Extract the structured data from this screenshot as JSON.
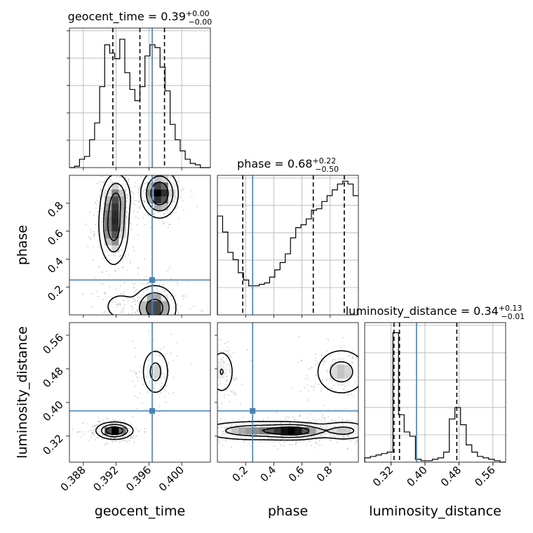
{
  "colors": {
    "truth": "#4682b4",
    "hist": "#000000",
    "grid": "#b0b0b0",
    "contour": "#000000",
    "density_max": "#000000",
    "density_min": "#ffffff",
    "sample_points": "#aaaaaa"
  },
  "chart_data": {
    "type": "corner",
    "parameters": [
      {
        "name": "geocent_time",
        "axis_label": "geocent_time",
        "title_text": "geocent_time = 0.39",
        "title_sup": "+0.00",
        "title_sub": "−0.00",
        "range": [
          0.3863,
          0.4035
        ],
        "ticks": [
          0.388,
          0.392,
          0.396,
          0.4
        ],
        "tick_labels": [
          "0.388",
          "0.392",
          "0.396",
          "0.400"
        ],
        "truth": 0.3964,
        "quantiles": [
          0.3916,
          0.3949,
          0.3979
        ]
      },
      {
        "name": "phase",
        "axis_label": "phase",
        "title_text": "phase = 0.68",
        "title_sup": "+0.22",
        "title_sub": "−0.50",
        "range": [
          0.0,
          1.0
        ],
        "ticks": [
          0.2,
          0.4,
          0.6,
          0.8
        ],
        "tick_labels": [
          "0.2",
          "0.4",
          "0.6",
          "0.8"
        ],
        "truth": 0.25,
        "quantiles": [
          0.18,
          0.68,
          0.9
        ]
      },
      {
        "name": "luminosity_distance",
        "axis_label": "luminosity_distance",
        "title_text": "luminosity_distance = 0.34",
        "title_sup": "+0.13",
        "title_sub": "−0.01",
        "range": [
          0.258,
          0.59
        ],
        "ticks": [
          0.32,
          0.4,
          0.48,
          0.56
        ],
        "tick_labels": [
          "0.32",
          "0.40",
          "0.48",
          "0.56"
        ],
        "truth": 0.38,
        "quantiles": [
          0.327,
          0.34,
          0.475
        ]
      }
    ],
    "histograms": [
      {
        "param": "geocent_time",
        "ymax": 1.0,
        "values": [
          0,
          0.01,
          0.06,
          0.08,
          0.2,
          0.32,
          0.58,
          0.88,
          0.82,
          0.78,
          0.92,
          0.68,
          0.56,
          0.48,
          0.58,
          0.8,
          0.88,
          0.86,
          0.72,
          0.55,
          0.31,
          0.2,
          0.12,
          0.06,
          0.03,
          0.02,
          0.0,
          0.0
        ]
      },
      {
        "param": "phase",
        "ymax": 0.96,
        "values": [
          0.68,
          0.57,
          0.43,
          0.38,
          0.29,
          0.24,
          0.2,
          0.2,
          0.21,
          0.22,
          0.26,
          0.31,
          0.36,
          0.42,
          0.53,
          0.6,
          0.62,
          0.66,
          0.72,
          0.73,
          0.78,
          0.82,
          0.86,
          0.9,
          0.92,
          0.9,
          0.82
        ]
      },
      {
        "param": "luminosity_distance",
        "ymax": 0.97,
        "values": [
          0.03,
          0.04,
          0.05,
          0.06,
          0.07,
          0.9,
          0.33,
          0.21,
          0.18,
          0.02,
          0.01,
          0.01,
          0.02,
          0.03,
          0.07,
          0.3,
          0.38,
          0.26,
          0.12,
          0.07,
          0.04,
          0.03,
          0.02,
          0.01,
          0.0
        ]
      }
    ],
    "density_2d": [
      {
        "x": "geocent_time",
        "y": "phase",
        "blobs": [
          {
            "cx": 0.3973,
            "cy": 0.87,
            "sx": 0.0011,
            "sy": 0.085,
            "w": 1.0
          },
          {
            "cx": 0.3917,
            "cy": 0.64,
            "sx": 0.0009,
            "sy": 0.14,
            "w": 0.85
          },
          {
            "cx": 0.3921,
            "cy": 0.85,
            "sx": 0.0009,
            "sy": 0.09,
            "w": 0.45
          },
          {
            "cx": 0.3967,
            "cy": 0.05,
            "sx": 0.0013,
            "sy": 0.08,
            "w": 0.85
          },
          {
            "cx": 0.3925,
            "cy": 0.06,
            "sx": 0.0012,
            "sy": 0.06,
            "w": 0.25
          }
        ]
      },
      {
        "x": "geocent_time",
        "y": "luminosity_distance",
        "blobs": [
          {
            "cx": 0.3918,
            "cy": 0.333,
            "sx": 0.0011,
            "sy": 0.01,
            "w": 1.0
          },
          {
            "cx": 0.3968,
            "cy": 0.473,
            "sx": 0.0009,
            "sy": 0.03,
            "w": 0.45
          }
        ]
      },
      {
        "x": "phase",
        "y": "luminosity_distance",
        "blobs": [
          {
            "cx": 0.55,
            "cy": 0.332,
            "sx": 0.12,
            "sy": 0.01,
            "w": 1.0
          },
          {
            "cx": 0.25,
            "cy": 0.333,
            "sx": 0.2,
            "sy": 0.012,
            "w": 0.7
          },
          {
            "cx": 0.9,
            "cy": 0.333,
            "sx": 0.1,
            "sy": 0.012,
            "w": 0.55
          },
          {
            "cx": 0.88,
            "cy": 0.473,
            "sx": 0.1,
            "sy": 0.03,
            "w": 0.6
          },
          {
            "cx": 0.03,
            "cy": 0.473,
            "sx": 0.05,
            "sy": 0.03,
            "w": 0.45
          }
        ]
      }
    ],
    "contour_levels": [
      0.12,
      0.35,
      0.65
    ],
    "grid": true
  }
}
